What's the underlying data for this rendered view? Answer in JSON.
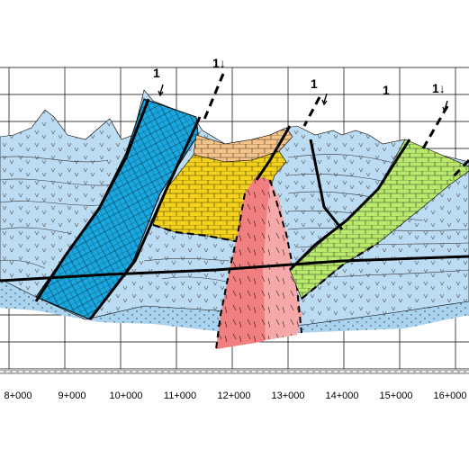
{
  "figure": {
    "type": "geological cross-section",
    "station_labels": [
      "8+000",
      "9+000",
      "10+000",
      "11+000",
      "12+000",
      "13+000",
      "14+000",
      "15+000",
      "16+000"
    ],
    "fault_marks": [
      "1",
      "1↓",
      "1",
      "1",
      "1↓"
    ],
    "colors": {
      "host_rock": "#bcdcf3",
      "lower_layer": "#a9d3ef",
      "blue_unit": "#1aa6df",
      "yellow_unit": "#f4d21b",
      "tan_unit": "#f3c38a",
      "red_intrusion_dark": "#f07f7f",
      "red_intrusion_light": "#f5a9a9",
      "green_unit": "#b9ea6e",
      "grid": "#000000",
      "scale_bar": "#b3b3b3"
    },
    "legend": "none",
    "grid": true
  }
}
